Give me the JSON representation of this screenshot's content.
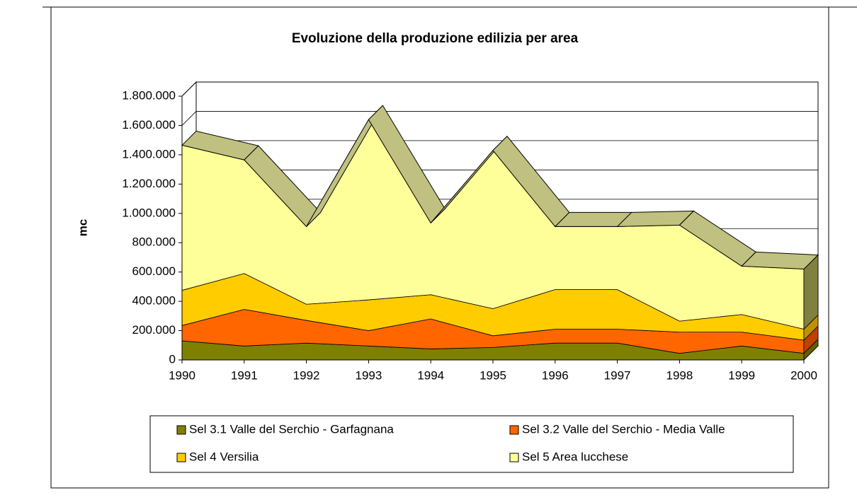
{
  "chart_data": {
    "type": "area",
    "title": "Evoluzione della produzione edilizia per area",
    "ylabel": "mc",
    "categories": [
      "1990",
      "1991",
      "1992",
      "1993",
      "1994",
      "1995",
      "1996",
      "1997",
      "1998",
      "1999",
      "2000"
    ],
    "stacked": true,
    "series": [
      {
        "name": "Sel 3.1 Valle del Serchio - Garfagnana",
        "color": "#808000",
        "values": [
          130000,
          95000,
          115000,
          95000,
          75000,
          85000,
          115000,
          115000,
          45000,
          95000,
          45000
        ]
      },
      {
        "name": "Sel 3.2 Valle del Serchio - Media Valle",
        "color": "#ff6600",
        "values": [
          105000,
          250000,
          155000,
          105000,
          205000,
          80000,
          95000,
          95000,
          145000,
          95000,
          90000
        ]
      },
      {
        "name": "Sel 4 Versilia",
        "color": "#ffcc00",
        "values": [
          240000,
          245000,
          110000,
          210000,
          165000,
          185000,
          270000,
          270000,
          75000,
          120000,
          75000
        ]
      },
      {
        "name": "Sel 5 Area lucchese",
        "color": "#ffff99",
        "values": [
          990000,
          775000,
          530000,
          1230000,
          490000,
          1080000,
          430000,
          430000,
          655000,
          330000,
          410000
        ]
      }
    ],
    "ylim": [
      0,
      1800000
    ],
    "yticks": [
      0,
      {
        "value": 200000,
        "label": "200.000"
      },
      {
        "value": 400000,
        "label": "400.000"
      },
      {
        "value": 600000,
        "label": "600.000"
      },
      {
        "value": 800000,
        "label": "800.000"
      },
      {
        "value": 1000000,
        "label": "1.000.000"
      },
      {
        "value": 1200000,
        "label": "1.200.000"
      },
      {
        "value": 1400000,
        "label": "1.400.000"
      },
      {
        "value": 1600000,
        "label": "1.600.000"
      },
      {
        "value": 1800000,
        "label": "1.800.000"
      }
    ],
    "grid": true
  }
}
